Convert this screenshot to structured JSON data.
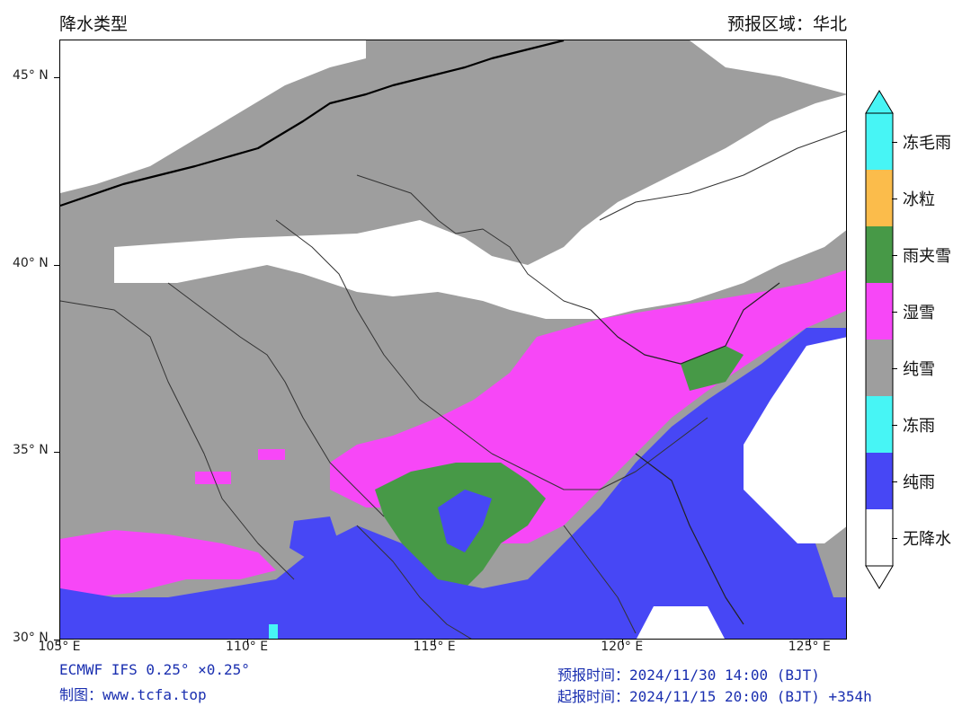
{
  "header": {
    "title": "降水类型",
    "region": "预报区域：华北"
  },
  "map": {
    "lat_range": [
      30,
      46
    ],
    "lon_range": [
      105,
      126
    ],
    "lat_ticks": [
      {
        "value": 45,
        "label": "45° N"
      },
      {
        "value": 40,
        "label": "40° N"
      },
      {
        "value": 35,
        "label": "35° N"
      },
      {
        "value": 30,
        "label": "30° N"
      }
    ],
    "lon_ticks": [
      {
        "value": 105,
        "label": "105° E"
      },
      {
        "value": 110,
        "label": "110° E"
      },
      {
        "value": 115,
        "label": "115° E"
      },
      {
        "value": 120,
        "label": "120° E"
      },
      {
        "value": 125,
        "label": "125° E"
      }
    ]
  },
  "legend": {
    "items": [
      {
        "label": "冻毛雨",
        "color": "#47f5f5"
      },
      {
        "label": "冰粒",
        "color": "#fbbc4b"
      },
      {
        "label": "雨夹雪",
        "color": "#479947"
      },
      {
        "label": "湿雪",
        "color": "#f747f7"
      },
      {
        "label": "纯雪",
        "color": "#9e9e9e"
      },
      {
        "label": "冻雨",
        "color": "#47f5f5"
      },
      {
        "label": "纯雨",
        "color": "#4747f5"
      },
      {
        "label": "无降水",
        "color": "#ffffff"
      }
    ]
  },
  "footer": {
    "model": "ECMWF IFS 0.25° ×0.25°",
    "credit": "制图：www.tcfa.top",
    "valid_time": "预报时间：2024/11/30 14:00 (BJT)",
    "init_time": "起报时间：2024/11/15 20:00 (BJT) +354h"
  }
}
